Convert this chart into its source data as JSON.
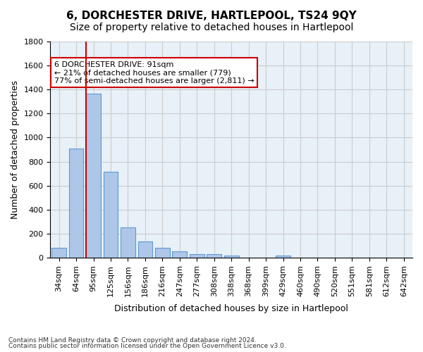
{
  "title": "6, DORCHESTER DRIVE, HARTLEPOOL, TS24 9QY",
  "subtitle": "Size of property relative to detached houses in Hartlepool",
  "xlabel": "Distribution of detached houses by size in Hartlepool",
  "ylabel": "Number of detached properties",
  "footnote1": "Contains HM Land Registry data © Crown copyright and database right 2024.",
  "footnote2": "Contains public sector information licensed under the Open Government Licence v3.0.",
  "categories": [
    "34sqm",
    "64sqm",
    "95sqm",
    "125sqm",
    "156sqm",
    "186sqm",
    "216sqm",
    "247sqm",
    "277sqm",
    "308sqm",
    "338sqm",
    "368sqm",
    "399sqm",
    "429sqm",
    "460sqm",
    "490sqm",
    "520sqm",
    "551sqm",
    "581sqm",
    "612sqm",
    "642sqm"
  ],
  "values": [
    85,
    910,
    1365,
    715,
    250,
    135,
    80,
    55,
    30,
    30,
    20,
    0,
    0,
    20,
    0,
    0,
    0,
    0,
    0,
    0,
    0
  ],
  "bar_color": "#aec6e8",
  "bar_edge_color": "#5b9bd5",
  "property_bar_index": 2,
  "property_bar_color": "#aec6e8",
  "property_bar_edge_color": "#5b9bd5",
  "vline_x": 2,
  "vline_color": "#cc0000",
  "ylim": [
    0,
    1800
  ],
  "yticks": [
    0,
    200,
    400,
    600,
    800,
    1000,
    1200,
    1400,
    1600,
    1800
  ],
  "annotation_text": "6 DORCHESTER DRIVE: 91sqm\n← 21% of detached houses are smaller (779)\n77% of semi-detached houses are larger (2,811) →",
  "annotation_box_color": "#ffffff",
  "annotation_box_edge_color": "#cc0000",
  "grid_color": "#cccccc",
  "background_color": "#ffffff",
  "title_fontsize": 11,
  "subtitle_fontsize": 10,
  "axis_label_fontsize": 9,
  "tick_fontsize": 8,
  "annotation_fontsize": 8
}
